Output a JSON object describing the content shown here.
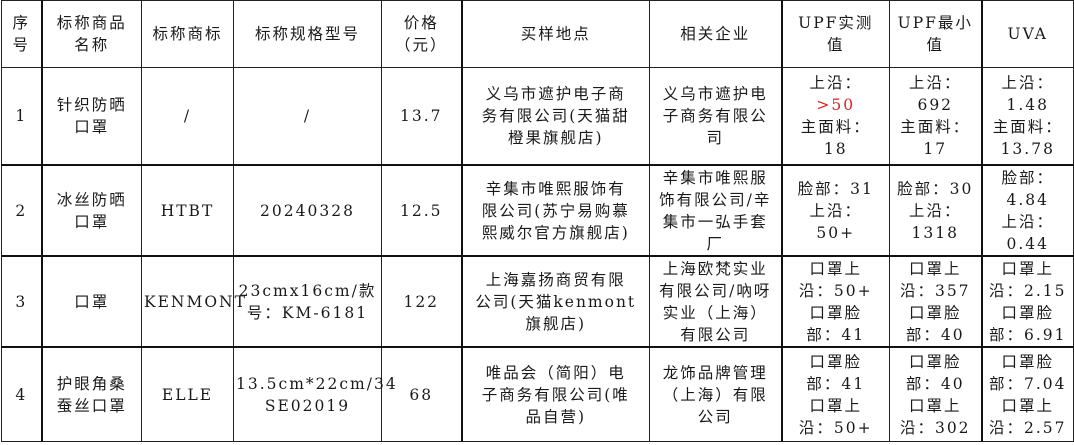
{
  "headers": [
    "序\n号",
    "标称商品\n名称",
    "标称商标",
    "标称规格型号",
    "价格\n（元）",
    "买样地点",
    "相关企业",
    "UPF实测\n值",
    "UPF最小\n值",
    "UVA"
  ],
  "rows": [
    {
      "no": "1",
      "name": "针织防晒\n口罩",
      "brand": "/",
      "spec": "/",
      "price": "13.7",
      "place": "义乌市遮护电子商\n务有限公司(天猫甜\n橙果旗舰店)",
      "company": "义乌市遮护电\n子商务有限公\n司",
      "upf_prefix": "上沿：\n",
      "upf_red": ">50",
      "upf_rest": "\n主面料：\n18",
      "upf_min": "上沿：\n692\n主面料：\n17",
      "uva": "上沿：\n1.48\n主面料：\n13.78"
    },
    {
      "no": "2",
      "name": "冰丝防晒\n口罩",
      "brand": "HTBT",
      "spec": "20240328",
      "price": "12.5",
      "place": "辛集市唯熙服饰有\n限公司(苏宁易购慕\n熙威尔官方旗舰店)",
      "company": "辛集市唯熙服\n饰有限公司/辛\n集市一弘手套\n厂",
      "upf_prefix": "脸部：31\n上沿：\n50+",
      "upf_red": "",
      "upf_rest": "",
      "upf_min": "脸部：30\n上沿：\n1318",
      "uva": "脸部：\n4.84\n上沿：\n0.44"
    },
    {
      "no": "3",
      "name": "口罩",
      "brand": "KENMONT",
      "spec": "23cmx16cm/款\n号：KM-6181",
      "price": "122",
      "place": "上海嘉扬商贸有限\n公司(天猫kenmont\n旗舰店)",
      "company": "上海欧梵实业\n有限公司/吶呀\n实业（上海）\n有限公司",
      "upf_prefix": "口罩上\n沿：50+\n口罩脸\n部：41",
      "upf_red": "",
      "upf_rest": "",
      "upf_min": "口罩上\n沿：357\n口罩脸\n部：40",
      "uva": "口罩上\n沿：2.15\n口罩脸\n部：6.91"
    },
    {
      "no": "4",
      "name": "护眼角桑\n蚕丝口罩",
      "brand": "ELLE",
      "spec": "13.5cm*22cm/34\nSE02019",
      "price": "68",
      "place": "唯品会（简阳）电\n子商务有限公司(唯\n品自营)",
      "company": "龙饰品牌管理\n（上海）有限\n公司",
      "upf_prefix": "口罩脸\n部：41\n口罩上\n沿：50+",
      "upf_red": "",
      "upf_rest": "",
      "upf_min": "口罩脸\n部：40\n口罩上\n沿：302",
      "uva": "口罩脸\n部：7.04\n口罩上\n沿：2.57"
    }
  ]
}
